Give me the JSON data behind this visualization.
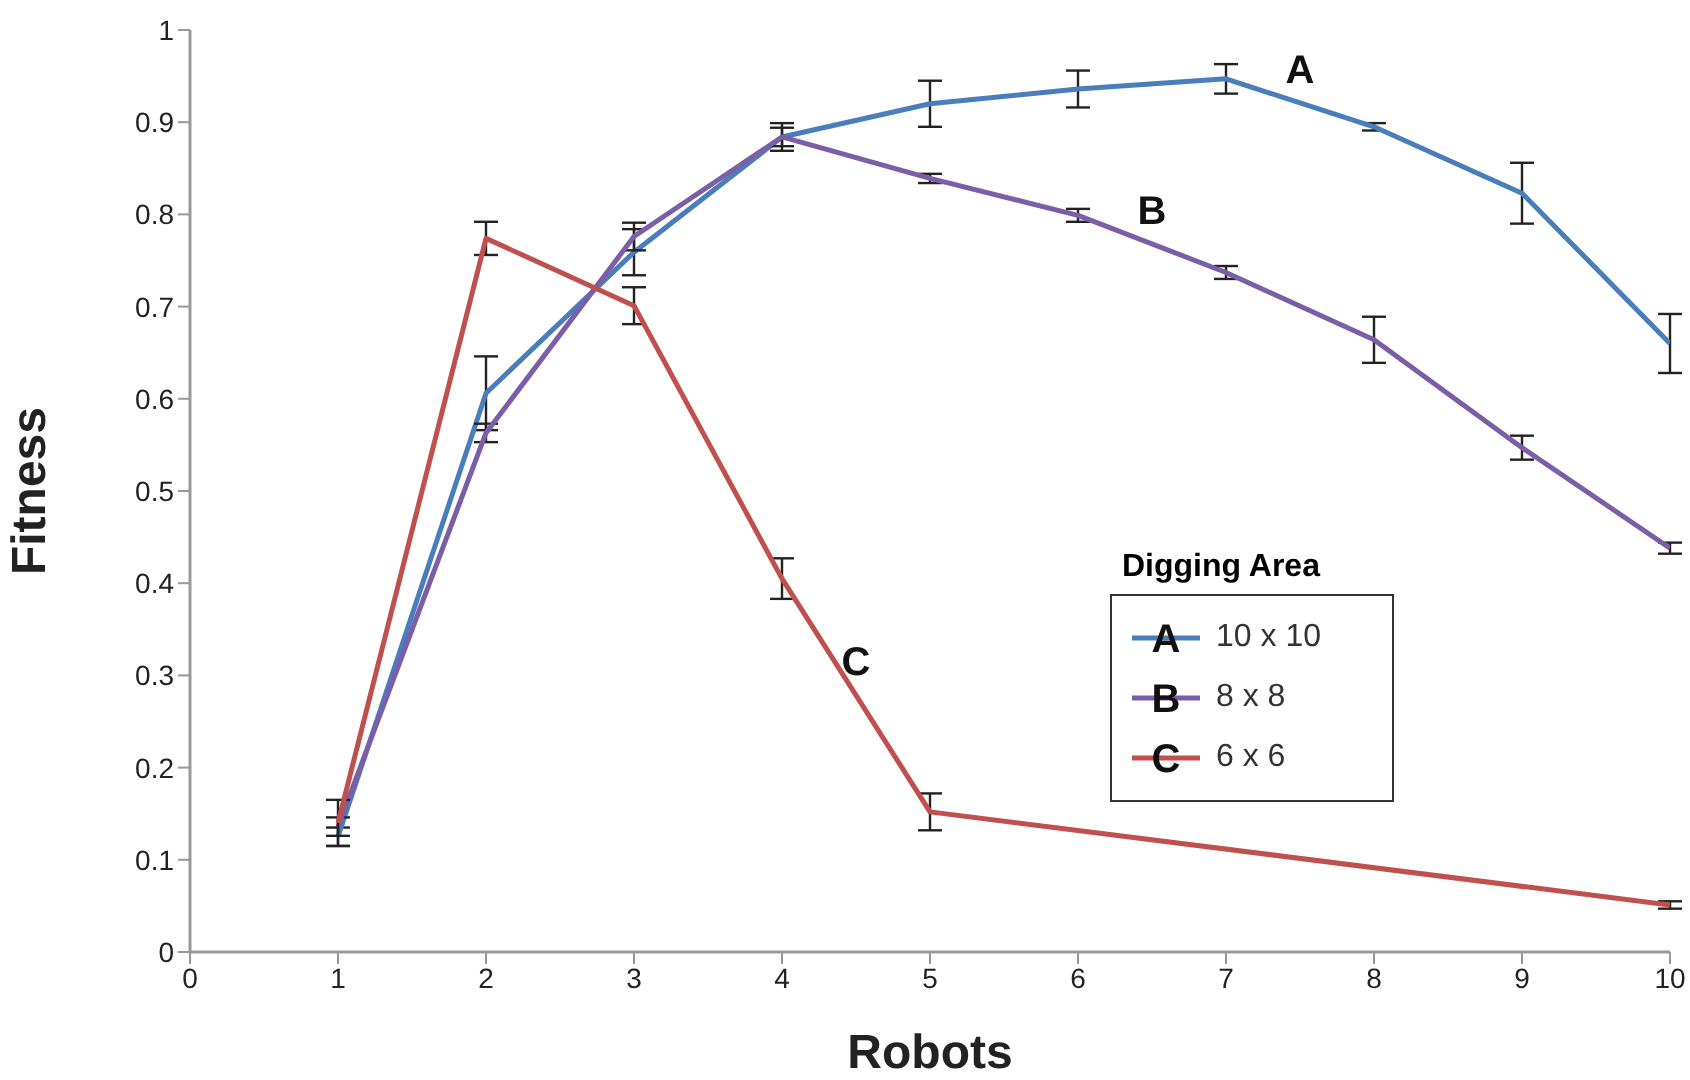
{
  "chart_data": {
    "type": "line",
    "xlabel": "Robots",
    "ylabel": "Fitness",
    "legend_title": "Digging Area",
    "xlim": [
      0,
      10
    ],
    "xticks": [
      0,
      1,
      2,
      3,
      4,
      5,
      6,
      7,
      8,
      9,
      10
    ],
    "ylim": [
      0,
      1
    ],
    "yticks": [
      0,
      0.1,
      0.2,
      0.3,
      0.4,
      0.5,
      0.6,
      0.7,
      0.8,
      0.9,
      1
    ],
    "grid": false,
    "legend": "bottom right",
    "marker": "none",
    "series": [
      {
        "name": "10 x 10",
        "color": "#4a7ebb",
        "x": [
          1,
          2,
          3,
          4,
          5,
          6,
          7,
          8,
          9,
          10
        ],
        "values": [
          0.125,
          0.606,
          0.759,
          0.884,
          0.92,
          0.936,
          0.947,
          0.895,
          0.823,
          0.66
        ],
        "errors": [
          0.01,
          0.04,
          0.025,
          0.015,
          0.025,
          0.02,
          0.016,
          0.004,
          0.033,
          0.032
        ]
      },
      {
        "name": "8 x 8",
        "color": "#7a5ea8",
        "x": [
          1,
          2,
          3,
          4,
          5,
          6,
          7,
          8,
          9,
          10
        ],
        "values": [
          0.136,
          0.563,
          0.776,
          0.884,
          0.839,
          0.799,
          0.737,
          0.664,
          0.547,
          0.438
        ],
        "errors": [
          0.01,
          0.01,
          0.015,
          0.01,
          0.005,
          0.007,
          0.007,
          0.025,
          0.013,
          0.006
        ]
      },
      {
        "name": "6 x 6",
        "color": "#c0504d",
        "x": [
          1,
          2,
          3,
          4,
          5,
          10
        ],
        "values": [
          0.14,
          0.774,
          0.701,
          0.405,
          0.152,
          0.051
        ],
        "errors": [
          0.025,
          0.018,
          0.02,
          0.022,
          0.02,
          0.004
        ]
      }
    ],
    "annotations": [
      "A",
      "B",
      "C"
    ]
  }
}
